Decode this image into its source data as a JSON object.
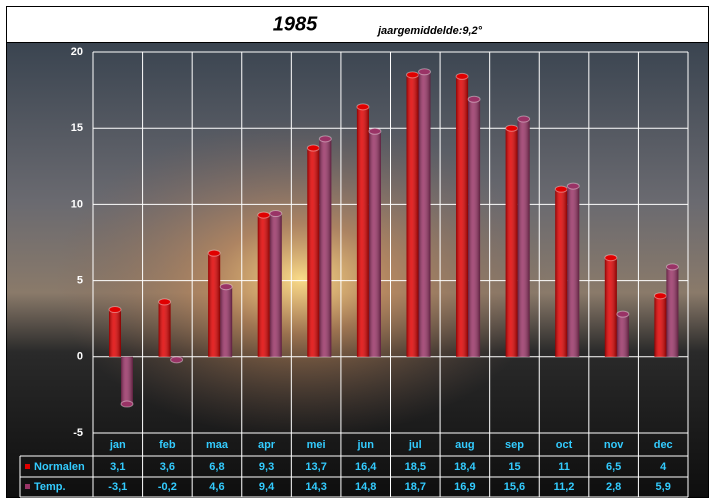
{
  "chart_data": {
    "type": "bar",
    "title": "1985",
    "subtitle": "jaargemiddelde:9,2°",
    "categories": [
      "jan",
      "feb",
      "maa",
      "apr",
      "mei",
      "jun",
      "jul",
      "aug",
      "sep",
      "oct",
      "nov",
      "dec"
    ],
    "series": [
      {
        "name": "Normalen",
        "color": "#e00000",
        "values": [
          3.1,
          3.6,
          6.8,
          9.3,
          13.7,
          16.4,
          18.5,
          18.4,
          15,
          11,
          6.5,
          4
        ],
        "value_labels": [
          "3,1",
          "3,6",
          "6,8",
          "9,3",
          "13,7",
          "16,4",
          "18,5",
          "18,4",
          "15",
          "11",
          "6,5",
          "4"
        ]
      },
      {
        "name": "Temp.",
        "color": "#993366",
        "values": [
          -3.1,
          -0.2,
          4.6,
          9.4,
          14.3,
          14.8,
          18.7,
          16.9,
          15.6,
          11.2,
          2.8,
          5.9
        ],
        "value_labels": [
          "-3,1",
          "-0,2",
          "4,6",
          "9,4",
          "14,3",
          "14,8",
          "18,7",
          "16,9",
          "15,6",
          "11,2",
          "2,8",
          "5,9"
        ]
      }
    ],
    "ylim": [
      -5,
      20
    ],
    "yticks": [
      -5,
      0,
      5,
      10,
      15,
      20
    ],
    "grid": true
  }
}
